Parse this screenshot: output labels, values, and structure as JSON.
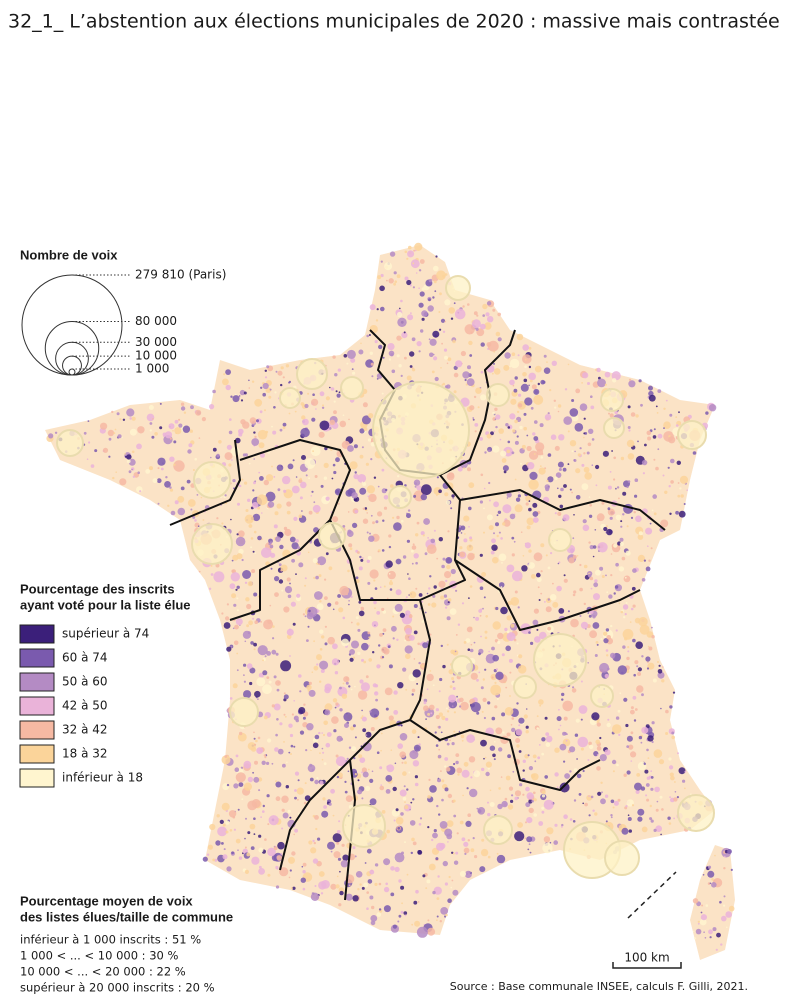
{
  "header": {
    "title": "32_1_ L’abstention aux élections municipales de 2020 : massive mais contrastée"
  },
  "legend_size": {
    "title": "Nombre de voix",
    "items": [
      {
        "value": 279810,
        "label": "279 810 (Paris)"
      },
      {
        "value": 80000,
        "label": "80 000"
      },
      {
        "value": 30000,
        "label": "30 000"
      },
      {
        "value": 10000,
        "label": "10 000"
      },
      {
        "value": 1000,
        "label": "1 000"
      }
    ]
  },
  "legend_color": {
    "title_lines": [
      "Pourcentage des inscrits",
      "ayant voté pour la liste élue"
    ],
    "items": [
      {
        "label": "supérieur à 74",
        "color": "#3b1f7a"
      },
      {
        "label": "60 à 74",
        "color": "#7a5aae"
      },
      {
        "label": "50 à 60",
        "color": "#b48bc4"
      },
      {
        "label": "42 à 50",
        "color": "#eab3d9"
      },
      {
        "label": "32 à 42",
        "color": "#f6b9a3"
      },
      {
        "label": "18 à 32",
        "color": "#fbd49a"
      },
      {
        "label": "inférieur à 18",
        "color": "#fff5cf"
      }
    ]
  },
  "legend_avg": {
    "title_lines": [
      "Pourcentage moyen de voix",
      "des listes élues/taille de commune"
    ],
    "lines": [
      "inférieur à 1 000 inscrits : 51 %",
      "1 000 < ... < 10 000 : 30 %",
      "10 000 < ... < 20 000 : 22 %",
      "supérieur à 20 000 inscrits : 20 %"
    ]
  },
  "scale": {
    "label": "100 km"
  },
  "source": "Source : Base communale INSEE, calculs F. Gilli, 2021."
}
